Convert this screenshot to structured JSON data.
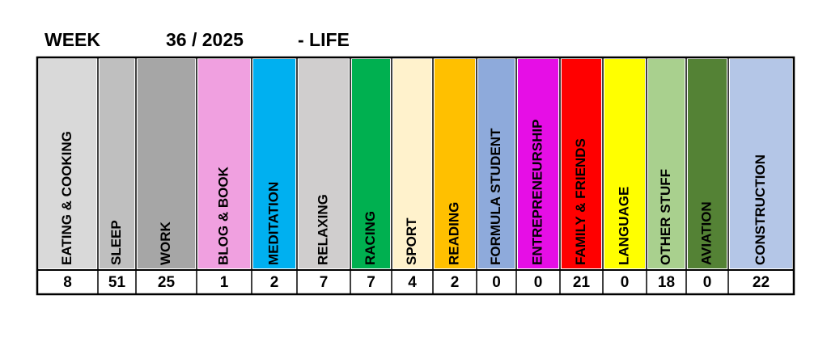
{
  "header": {
    "week_label": "WEEK",
    "week": "36 / 2025",
    "section": "- LIFE"
  },
  "table": {
    "columns": [
      {
        "label": "EATING & COOKING",
        "color": "#d9d9d9",
        "value": 8
      },
      {
        "label": "SLEEP",
        "color": "#bfbfbf",
        "value": 51
      },
      {
        "label": "WORK",
        "color": "#a6a6a6",
        "value": 25
      },
      {
        "label": "BLOG & BOOK",
        "color": "#f0a0e0",
        "value": 1
      },
      {
        "label": "MEDITATION",
        "color": "#00b0f0",
        "value": 2
      },
      {
        "label": "RELAXING",
        "color": "#d0cece",
        "value": 7
      },
      {
        "label": "RACING",
        "color": "#00b050",
        "value": 7
      },
      {
        "label": "SPORT",
        "color": "#fff2cc",
        "value": 4
      },
      {
        "label": "READING",
        "color": "#ffc000",
        "value": 2
      },
      {
        "label": "FORMULA STUDENT",
        "color": "#8eaadb",
        "value": 0
      },
      {
        "label": "ENTREPRENEURSHIP",
        "color": "#e60ee6",
        "value": 0
      },
      {
        "label": "FAMILY & FRIENDS",
        "color": "#ff0000",
        "value": 21
      },
      {
        "label": "LANGUAGE",
        "color": "#ffff00",
        "value": 0
      },
      {
        "label": "OTHER STUFF",
        "color": "#a9d08e",
        "value": 18
      },
      {
        "label": "AVIATION",
        "color": "#548235",
        "value": 0
      },
      {
        "label": "CONSTRUCTION",
        "color": "#b4c6e7",
        "value": 22
      }
    ]
  }
}
